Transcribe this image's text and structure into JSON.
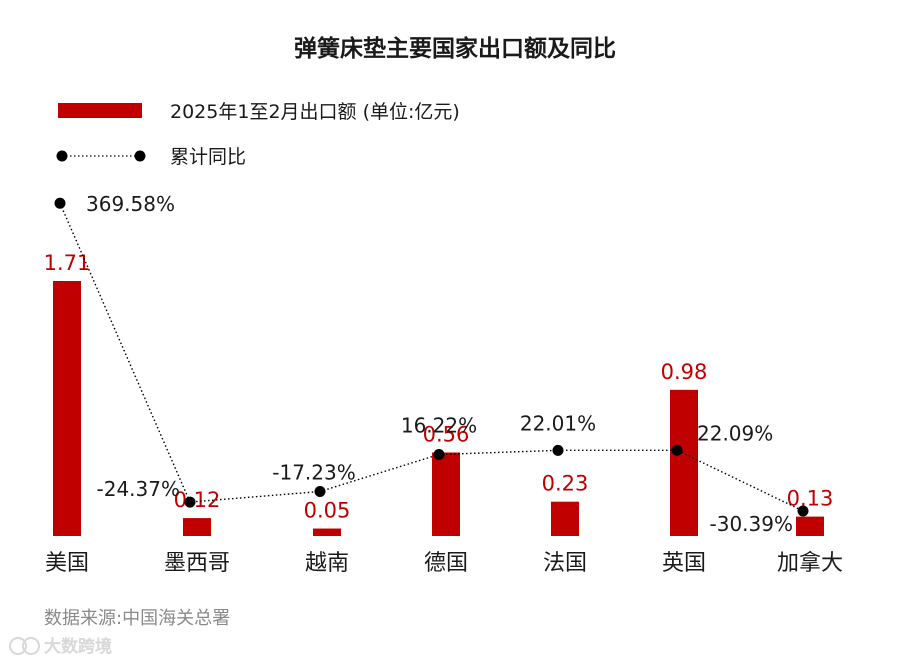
{
  "chart_data": {
    "type": "bar",
    "title": "弹簧床垫主要国家出口额及同比",
    "categories": [
      "美国",
      "墨西哥",
      "越南",
      "德国",
      "法国",
      "英国",
      "加拿大"
    ],
    "series": [
      {
        "name": "2025年1至2月出口额 (单位:亿元)",
        "type": "bar",
        "color": "#c00000",
        "values": [
          1.71,
          0.12,
          0.05,
          0.56,
          0.23,
          0.98,
          0.13
        ],
        "labels": [
          "1.71",
          "0.12",
          "0.05",
          "0.56",
          "0.23",
          "0.98",
          "0.13"
        ]
      },
      {
        "name": "累计同比",
        "type": "line",
        "style": "dotted",
        "color": "#000000",
        "values": [
          369.58,
          -24.37,
          -17.23,
          16.22,
          22.01,
          22.09,
          -30.39
        ],
        "labels": [
          "369.58%",
          "-24.37%",
          "-17.23%",
          "16.22%",
          "22.01%",
          "22.09%",
          "-30.39%"
        ]
      }
    ],
    "xlabel": "",
    "ylabel": "",
    "grid": false,
    "legend": "top-left"
  },
  "source": "数据来源:中国海关总署",
  "watermark": "大数跨境"
}
